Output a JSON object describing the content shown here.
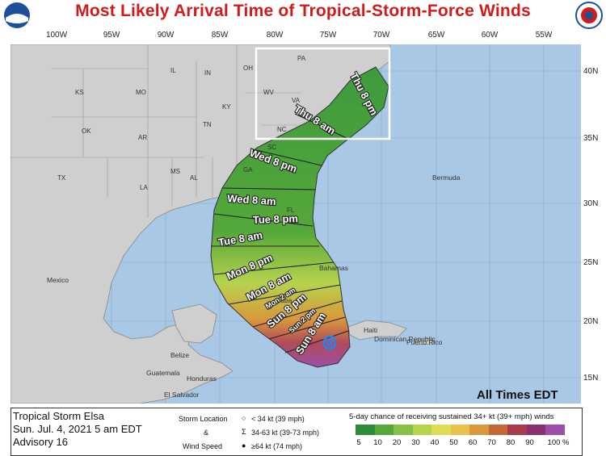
{
  "title": "Most Likely Arrival Time of Tropical-Storm-Force Winds",
  "logos": {
    "left": "noaa-logo",
    "right": "nws-logo"
  },
  "longitude_labels": [
    "100W",
    "95W",
    "90W",
    "85W",
    "80W",
    "75W",
    "70W",
    "65W",
    "60W",
    "55W"
  ],
  "latitude_labels": [
    "40N",
    "35N",
    "30N",
    "25N",
    "20N",
    "15N"
  ],
  "state_labels": [
    "KS",
    "MO",
    "IL",
    "IN",
    "OH",
    "PA",
    "WV",
    "VA",
    "KY",
    "TN",
    "NC",
    "OK",
    "AR",
    "SC",
    "GA",
    "MS",
    "AL",
    "TX",
    "LA",
    "FL"
  ],
  "place_labels": [
    "Bermuda",
    "Mexico",
    "Bahamas",
    "Cuba",
    "Haiti",
    "Dominican Republic",
    "Puerto Rico",
    "Belize",
    "Guatemala",
    "Honduras",
    "El Salvador"
  ],
  "arrival_labels": [
    "Thu 8 pm",
    "Thu 8 am",
    "Wed 8 pm",
    "Wed 8 am",
    "Tue 8 pm",
    "Tue 8 am",
    "Mon 8 pm",
    "Mon 8 am",
    "Mon 2 am",
    "Sun 8 pm",
    "Sun 2 pm",
    "Sun 8 am"
  ],
  "all_times": "All Times EDT",
  "storm": {
    "name": "Tropical Storm Elsa",
    "date": "Sun. Jul. 4, 2021   5 am EDT",
    "advisory": "Advisory 16"
  },
  "legend": {
    "storm_location": "Storm Location",
    "amp": "&",
    "wind_speed": "Wind Speed",
    "items": [
      "< 34 kt (39 mph)",
      "34-63 kt (39-73 mph)",
      "≥64 kt (74 mph)"
    ]
  },
  "scale": {
    "title": "5-day chance of receiving sustained 34+ kt (39+ mph) winds",
    "labels": [
      "5",
      "10",
      "20",
      "30",
      "40",
      "50",
      "60",
      "70",
      "80",
      "90",
      "100 %"
    ],
    "colors": [
      "#2e8b3a",
      "#55a83a",
      "#86c046",
      "#b6d34e",
      "#e0dd55",
      "#e8c24e",
      "#d9983c",
      "#c26a36",
      "#a83c4a",
      "#8b2f6e",
      "#9b4fa8"
    ]
  }
}
